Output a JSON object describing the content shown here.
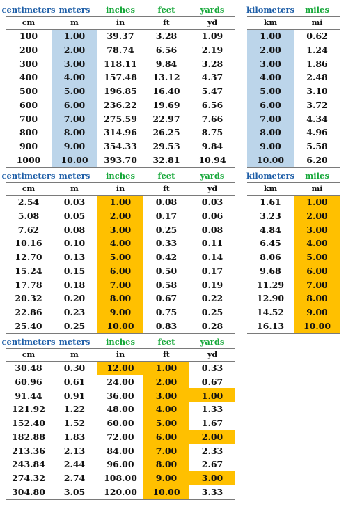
{
  "colors": {
    "blue_header": "#1f5fa8",
    "green_header": "#17a83a",
    "blue_highlight": "#bcd5ea",
    "gold_highlight": "#ffc000"
  },
  "tables": [
    {
      "id": "t1",
      "headers": [
        "centimeters",
        "meters",
        "inches",
        "feet",
        "yards"
      ],
      "header_colors": [
        "blue",
        "blue",
        "green",
        "green",
        "green"
      ],
      "units": [
        "cm",
        "m",
        "in",
        "ft",
        "yd"
      ],
      "rows": [
        [
          "100",
          "1.00",
          "39.37",
          "3.28",
          "1.09"
        ],
        [
          "200",
          "2.00",
          "78.74",
          "6.56",
          "2.19"
        ],
        [
          "300",
          "3.00",
          "118.11",
          "9.84",
          "3.28"
        ],
        [
          "400",
          "4.00",
          "157.48",
          "13.12",
          "4.37"
        ],
        [
          "500",
          "5.00",
          "196.85",
          "16.40",
          "5.47"
        ],
        [
          "600",
          "6.00",
          "236.22",
          "19.69",
          "6.56"
        ],
        [
          "700",
          "7.00",
          "275.59",
          "22.97",
          "7.66"
        ],
        [
          "800",
          "8.00",
          "314.96",
          "26.25",
          "8.75"
        ],
        [
          "900",
          "9.00",
          "354.33",
          "29.53",
          "9.84"
        ],
        [
          "1000",
          "10.00",
          "393.70",
          "32.81",
          "10.94"
        ]
      ],
      "highlight": "blue"
    },
    {
      "id": "t2",
      "headers": [
        "kilometers",
        "miles"
      ],
      "header_colors": [
        "blue",
        "green"
      ],
      "units": [
        "km",
        "mi"
      ],
      "rows": [
        [
          "1.00",
          "0.62"
        ],
        [
          "2.00",
          "1.24"
        ],
        [
          "3.00",
          "1.86"
        ],
        [
          "4.00",
          "2.48"
        ],
        [
          "5.00",
          "3.10"
        ],
        [
          "6.00",
          "3.72"
        ],
        [
          "7.00",
          "4.34"
        ],
        [
          "8.00",
          "4.96"
        ],
        [
          "9.00",
          "5.58"
        ],
        [
          "10.00",
          "6.20"
        ]
      ],
      "highlight": "blue"
    },
    {
      "id": "t3",
      "headers": [
        "centimeters",
        "meters",
        "inches",
        "feet",
        "yards"
      ],
      "header_colors": [
        "blue",
        "blue",
        "green",
        "green",
        "green"
      ],
      "units": [
        "cm",
        "m",
        "in",
        "ft",
        "yd"
      ],
      "rows": [
        [
          "2.54",
          "0.03",
          "1.00",
          "0.08",
          "0.03"
        ],
        [
          "5.08",
          "0.05",
          "2.00",
          "0.17",
          "0.06"
        ],
        [
          "7.62",
          "0.08",
          "3.00",
          "0.25",
          "0.08"
        ],
        [
          "10.16",
          "0.10",
          "4.00",
          "0.33",
          "0.11"
        ],
        [
          "12.70",
          "0.13",
          "5.00",
          "0.42",
          "0.14"
        ],
        [
          "15.24",
          "0.15",
          "6.00",
          "0.50",
          "0.17"
        ],
        [
          "17.78",
          "0.18",
          "7.00",
          "0.58",
          "0.19"
        ],
        [
          "20.32",
          "0.20",
          "8.00",
          "0.67",
          "0.22"
        ],
        [
          "22.86",
          "0.23",
          "9.00",
          "0.75",
          "0.25"
        ],
        [
          "25.40",
          "0.25",
          "10.00",
          "0.83",
          "0.28"
        ]
      ],
      "highlight": "gold"
    },
    {
      "id": "t4",
      "headers": [
        "kilometers",
        "miles"
      ],
      "header_colors": [
        "blue",
        "green"
      ],
      "units": [
        "km",
        "mi"
      ],
      "rows": [
        [
          "1.61",
          "1.00"
        ],
        [
          "3.23",
          "2.00"
        ],
        [
          "4.84",
          "3.00"
        ],
        [
          "6.45",
          "4.00"
        ],
        [
          "8.06",
          "5.00"
        ],
        [
          "9.68",
          "6.00"
        ],
        [
          "11.29",
          "7.00"
        ],
        [
          "12.90",
          "8.00"
        ],
        [
          "14.52",
          "9.00"
        ],
        [
          "16.13",
          "10.00"
        ]
      ],
      "highlight": "gold"
    },
    {
      "id": "t5",
      "headers": [
        "centimeters",
        "meters",
        "inches",
        "feet",
        "yards"
      ],
      "header_colors": [
        "blue",
        "blue",
        "green",
        "green",
        "green"
      ],
      "units": [
        "cm",
        "m",
        "in",
        "ft",
        "yd"
      ],
      "rows": [
        [
          "30.48",
          "0.30",
          "12.00",
          "1.00",
          "0.33"
        ],
        [
          "60.96",
          "0.61",
          "24.00",
          "2.00",
          "0.67"
        ],
        [
          "91.44",
          "0.91",
          "36.00",
          "3.00",
          "1.00"
        ],
        [
          "121.92",
          "1.22",
          "48.00",
          "4.00",
          "1.33"
        ],
        [
          "152.40",
          "1.52",
          "60.00",
          "5.00",
          "1.67"
        ],
        [
          "182.88",
          "1.83",
          "72.00",
          "6.00",
          "2.00"
        ],
        [
          "213.36",
          "2.13",
          "84.00",
          "7.00",
          "2.33"
        ],
        [
          "243.84",
          "2.44",
          "96.00",
          "8.00",
          "2.67"
        ],
        [
          "274.32",
          "2.74",
          "108.00",
          "9.00",
          "3.00"
        ],
        [
          "304.80",
          "3.05",
          "120.00",
          "10.00",
          "3.33"
        ]
      ],
      "highlight": "gold"
    }
  ]
}
